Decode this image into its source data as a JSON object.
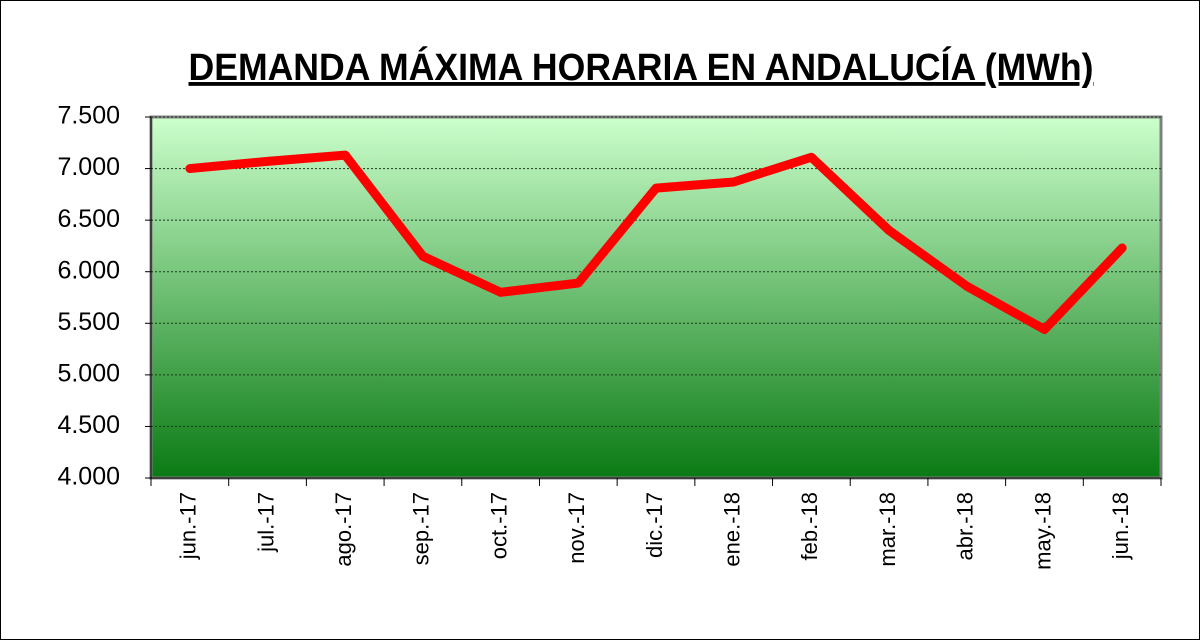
{
  "chart_data": {
    "type": "line",
    "title": "DEMANDA MÁXIMA HORARIA EN ANDALUCÍA (MWh)",
    "categories": [
      "jun.-17",
      "jul.-17",
      "ago.-17",
      "sep.-17",
      "oct.-17",
      "nov.-17",
      "dic.-17",
      "ene.-18",
      "feb.-18",
      "mar.-18",
      "abr.-18",
      "may.-18",
      "jun.-18"
    ],
    "series": [
      {
        "name": "Demanda máxima horaria",
        "color": "#ff0000",
        "values": [
          7000,
          7070,
          7130,
          6150,
          5800,
          5890,
          6810,
          6870,
          7110,
          6400,
          5860,
          5440,
          6230
        ]
      }
    ],
    "ylim": [
      4000,
      7500
    ],
    "yticks": [
      {
        "value": 4000,
        "label": "4.000"
      },
      {
        "value": 4500,
        "label": "4.500"
      },
      {
        "value": 5000,
        "label": "5.000"
      },
      {
        "value": 5500,
        "label": "5.500"
      },
      {
        "value": 6000,
        "label": "6.000"
      },
      {
        "value": 6500,
        "label": "6.500"
      },
      {
        "value": 7000,
        "label": "7.000"
      },
      {
        "value": 7500,
        "label": "7.500"
      }
    ],
    "grid": true
  }
}
